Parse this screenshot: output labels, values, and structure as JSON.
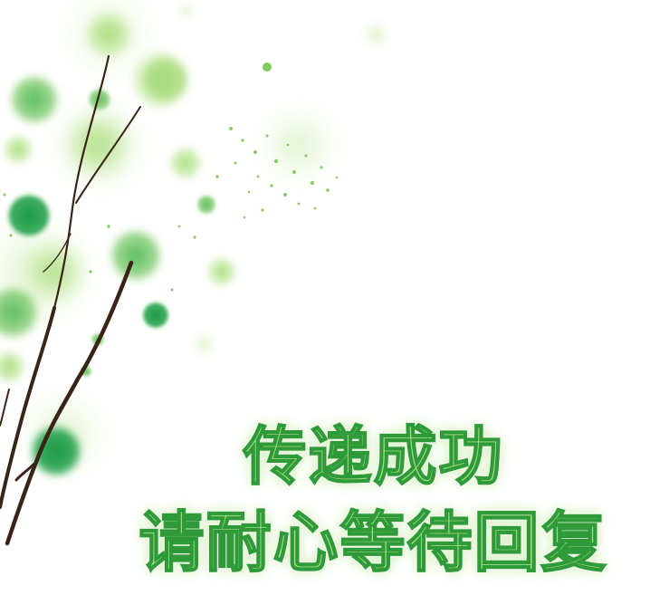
{
  "message": {
    "line1": "传递成功",
    "line2": "请耐心等待回复"
  },
  "decoration": {
    "illustration": "watercolor-tree-branches",
    "colors": {
      "leaf_light": "#b9e38f",
      "leaf_mid": "#6cc35a",
      "leaf_dark": "#1f9a44",
      "branch": "#3a2418",
      "text_fill": "#a6dd84",
      "text_stroke": "#2f9a3a"
    }
  }
}
